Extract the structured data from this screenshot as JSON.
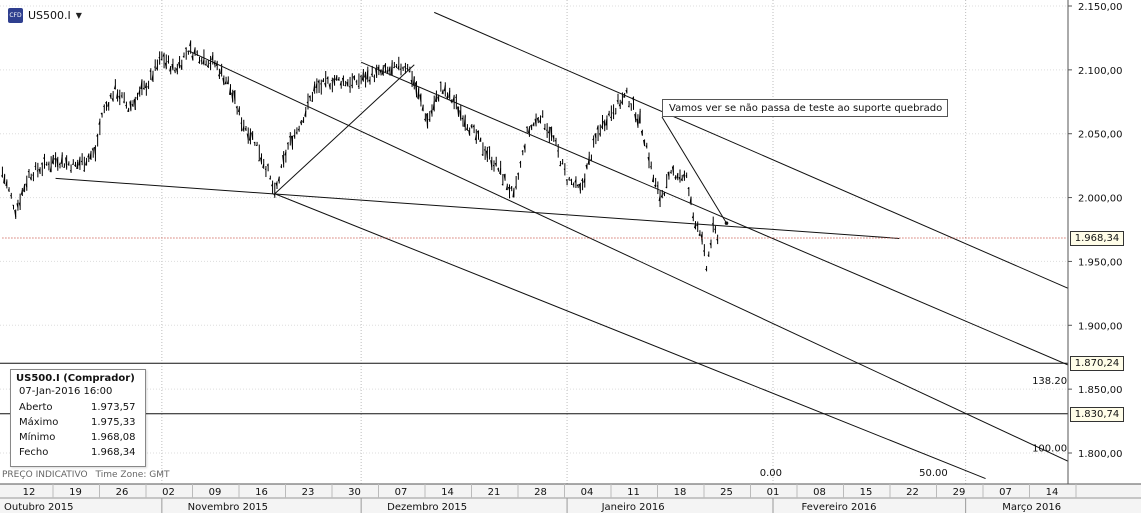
{
  "symbol": {
    "name": "US500.I",
    "icon": "cfd-icon",
    "icon_text": "CFD"
  },
  "annotation": "Vamos ver se não passa de teste ao suporte quebrado",
  "info_box": {
    "title": "US500.I (Comprador)",
    "datetime": "07-Jan-2016 16:00",
    "rows": [
      {
        "label": "Aberto",
        "value": "1.973,57"
      },
      {
        "label": "Máximo",
        "value": "1.975,33"
      },
      {
        "label": "Mínimo",
        "value": "1.968,08"
      },
      {
        "label": "Fecho",
        "value": "1.968,34"
      }
    ]
  },
  "footer": {
    "note": "PREÇO INDICATIVO",
    "timezone": "Time Zone: GMT"
  },
  "price_tags": [
    {
      "value": "1.968,34",
      "price": 1968.34
    },
    {
      "value": "1.870,24",
      "price": 1870.24
    },
    {
      "value": "1.830,74",
      "price": 1830.74
    }
  ],
  "colors": {
    "current_price_line": "#c0392b",
    "tag_bg": "#fffde8",
    "grid": "#c8c8c8"
  },
  "chart_data": {
    "type": "ohlc",
    "symbol": "US500.I",
    "y_ticks": [
      {
        "label": "2.150,00",
        "value": 2150
      },
      {
        "label": "2.100,00",
        "value": 2100
      },
      {
        "label": "2.050,00",
        "value": 2050
      },
      {
        "label": "2.000,00",
        "value": 2000
      },
      {
        "label": "1.950,00",
        "value": 1950
      },
      {
        "label": "1.900,00",
        "value": 1900
      },
      {
        "label": "1.850,00",
        "value": 1850
      },
      {
        "label": "1.800,00",
        "value": 1800
      }
    ],
    "ylim": [
      1775,
      2155
    ],
    "x_ticks": [
      {
        "label": "12",
        "date": "2015-10-12"
      },
      {
        "label": "19",
        "date": "2015-10-19"
      },
      {
        "label": "26",
        "date": "2015-10-26"
      },
      {
        "label": "02",
        "date": "2015-11-02"
      },
      {
        "label": "09",
        "date": "2015-11-09"
      },
      {
        "label": "16",
        "date": "2015-11-16"
      },
      {
        "label": "23",
        "date": "2015-11-23"
      },
      {
        "label": "30",
        "date": "2015-11-30"
      },
      {
        "label": "07",
        "date": "2015-12-07"
      },
      {
        "label": "14",
        "date": "2015-12-14"
      },
      {
        "label": "21",
        "date": "2015-12-21"
      },
      {
        "label": "28",
        "date": "2015-12-28"
      },
      {
        "label": "04",
        "date": "2016-01-04"
      },
      {
        "label": "11",
        "date": "2016-01-11"
      },
      {
        "label": "18",
        "date": "2016-01-18"
      },
      {
        "label": "25",
        "date": "2016-01-25"
      },
      {
        "label": "01",
        "date": "2016-02-01"
      },
      {
        "label": "08",
        "date": "2016-02-08"
      },
      {
        "label": "15",
        "date": "2016-02-15"
      },
      {
        "label": "22",
        "date": "2016-02-22"
      },
      {
        "label": "29",
        "date": "2016-02-29"
      },
      {
        "label": "07",
        "date": "2016-03-07"
      },
      {
        "label": "14",
        "date": "2016-03-14"
      }
    ],
    "month_labels": [
      {
        "label": "Outubro 2015",
        "date": "2015-10-01"
      },
      {
        "label": "Novembro 2015",
        "date": "2015-11-01"
      },
      {
        "label": "Dezembro 2015",
        "date": "2015-12-01"
      },
      {
        "label": "Janeiro 2016",
        "date": "2016-01-01"
      },
      {
        "label": "Fevereiro 2016",
        "date": "2016-02-01"
      },
      {
        "label": "Março 2016",
        "date": "2016-03-01"
      }
    ],
    "price_path": [
      [
        "2015-10-08",
        2020
      ],
      [
        "2015-10-10",
        1990
      ],
      [
        "2015-10-12",
        2018
      ],
      [
        "2015-10-16",
        2030
      ],
      [
        "2015-10-19",
        2025
      ],
      [
        "2015-10-22",
        2035
      ],
      [
        "2015-10-23",
        2065
      ],
      [
        "2015-10-25",
        2085
      ],
      [
        "2015-10-27",
        2070
      ],
      [
        "2015-10-30",
        2090
      ],
      [
        "2015-11-01",
        2110
      ],
      [
        "2015-11-03",
        2100
      ],
      [
        "2015-11-05",
        2116
      ],
      [
        "2015-11-09",
        2105
      ],
      [
        "2015-11-11",
        2090
      ],
      [
        "2015-11-13",
        2060
      ],
      [
        "2015-11-15",
        2045
      ],
      [
        "2015-11-17",
        2020
      ],
      [
        "2015-11-18",
        2002
      ],
      [
        "2015-11-20",
        2040
      ],
      [
        "2015-11-22",
        2060
      ],
      [
        "2015-11-24",
        2085
      ],
      [
        "2015-11-27",
        2092
      ],
      [
        "2015-11-30",
        2090
      ],
      [
        "2015-12-02",
        2095
      ],
      [
        "2015-12-06",
        2100
      ],
      [
        "2015-12-08",
        2104
      ],
      [
        "2015-12-09",
        2090
      ],
      [
        "2015-12-11",
        2060
      ],
      [
        "2015-12-13",
        2085
      ],
      [
        "2015-12-15",
        2075
      ],
      [
        "2015-12-18",
        2050
      ],
      [
        "2015-12-20",
        2035
      ],
      [
        "2015-12-22",
        2020
      ],
      [
        "2015-12-24",
        2000
      ],
      [
        "2015-12-26",
        2050
      ],
      [
        "2015-12-28",
        2065
      ],
      [
        "2015-12-30",
        2045
      ],
      [
        "2016-01-01",
        2015
      ],
      [
        "2016-01-03",
        2005
      ],
      [
        "2016-01-05",
        2040
      ],
      [
        "2016-01-06",
        2055
      ],
      [
        "2016-01-08",
        2070
      ],
      [
        "2016-01-10",
        2080
      ],
      [
        "2016-01-12",
        2060
      ],
      [
        "2016-01-13",
        2040
      ],
      [
        "2016-01-14",
        2015
      ],
      [
        "2016-01-15",
        2000
      ],
      [
        "2016-01-17",
        2020
      ],
      [
        "2016-01-19",
        2015
      ],
      [
        "2016-01-20",
        1985
      ],
      [
        "2016-01-21",
        1975
      ],
      [
        "2016-01-22",
        1945
      ],
      [
        "2016-01-23",
        1975
      ],
      [
        "2016-01-24",
        1968
      ]
    ],
    "lines": [
      {
        "name": "support-line",
        "points": [
          [
            "2015-10-16",
            2015
          ],
          [
            "2016-02-20",
            1968
          ]
        ]
      },
      {
        "name": "channel-upper",
        "points": [
          [
            "2015-12-12",
            2145
          ],
          [
            "2016-04-15",
            1862
          ]
        ]
      },
      {
        "name": "channel-mid",
        "points": [
          [
            "2015-12-01",
            2106
          ],
          [
            "2016-04-15",
            1803
          ]
        ]
      },
      {
        "name": "channel-lower-a",
        "points": [
          [
            "2015-11-05",
            2115
          ],
          [
            "2016-03-22",
            1780
          ]
        ]
      },
      {
        "name": "channel-lower-b",
        "points": [
          [
            "2015-11-18",
            2003
          ],
          [
            "2016-03-04",
            1780
          ]
        ]
      },
      {
        "name": "rise-line",
        "points": [
          [
            "2015-11-18",
            2003
          ],
          [
            "2015-12-09",
            2104
          ]
        ]
      },
      {
        "name": "current-price",
        "points": [
          [
            "2015-10-08",
            1968.34
          ],
          [
            "2016-03-20",
            1968.34
          ]
        ]
      }
    ],
    "h_levels": [
      1870.24,
      1830.74
    ],
    "fib_labels": [
      {
        "label": "138.20",
        "date": "2016-03-11",
        "value": 1854
      },
      {
        "label": "100.00",
        "date": "2016-03-11",
        "value": 1801
      },
      {
        "label": "50.00",
        "date": "2016-02-23",
        "value": 1782
      },
      {
        "label": "0.00",
        "date": "2016-01-30",
        "value": 1782
      }
    ],
    "annotation_pointer": {
      "date": "2016-01-25",
      "value": 1980
    },
    "grid": true
  }
}
